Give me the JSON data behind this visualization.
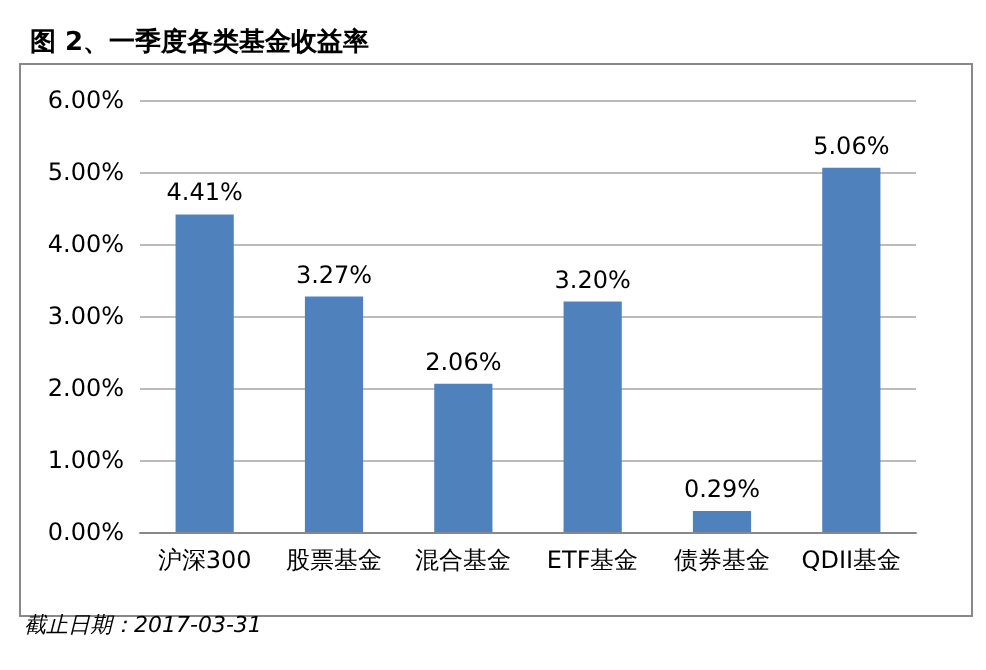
{
  "chart_data": {
    "type": "bar",
    "title": "图 2、一季度各类基金收益率",
    "categories": [
      "沪深300",
      "股票基金",
      "混合基金",
      "ETF基金",
      "债券基金",
      "QDII基金"
    ],
    "values": [
      4.41,
      3.27,
      2.06,
      3.2,
      0.29,
      5.06
    ],
    "value_labels": [
      "4.41%",
      "3.27%",
      "2.06%",
      "3.20%",
      "0.29%",
      "5.06%"
    ],
    "color": "#4f81bd",
    "ylim": [
      0,
      6
    ],
    "yticks": [
      {
        "value": 0,
        "label": "0.00%"
      },
      {
        "value": 1,
        "label": "1.00%"
      },
      {
        "value": 2,
        "label": "2.00%"
      },
      {
        "value": 3,
        "label": "3.00%"
      },
      {
        "value": 4,
        "label": "4.00%"
      },
      {
        "value": 5,
        "label": "5.00%"
      },
      {
        "value": 6,
        "label": "6.00%"
      }
    ],
    "grid": "y",
    "annotations": [
      "截止日期：2017-03-31"
    ]
  }
}
